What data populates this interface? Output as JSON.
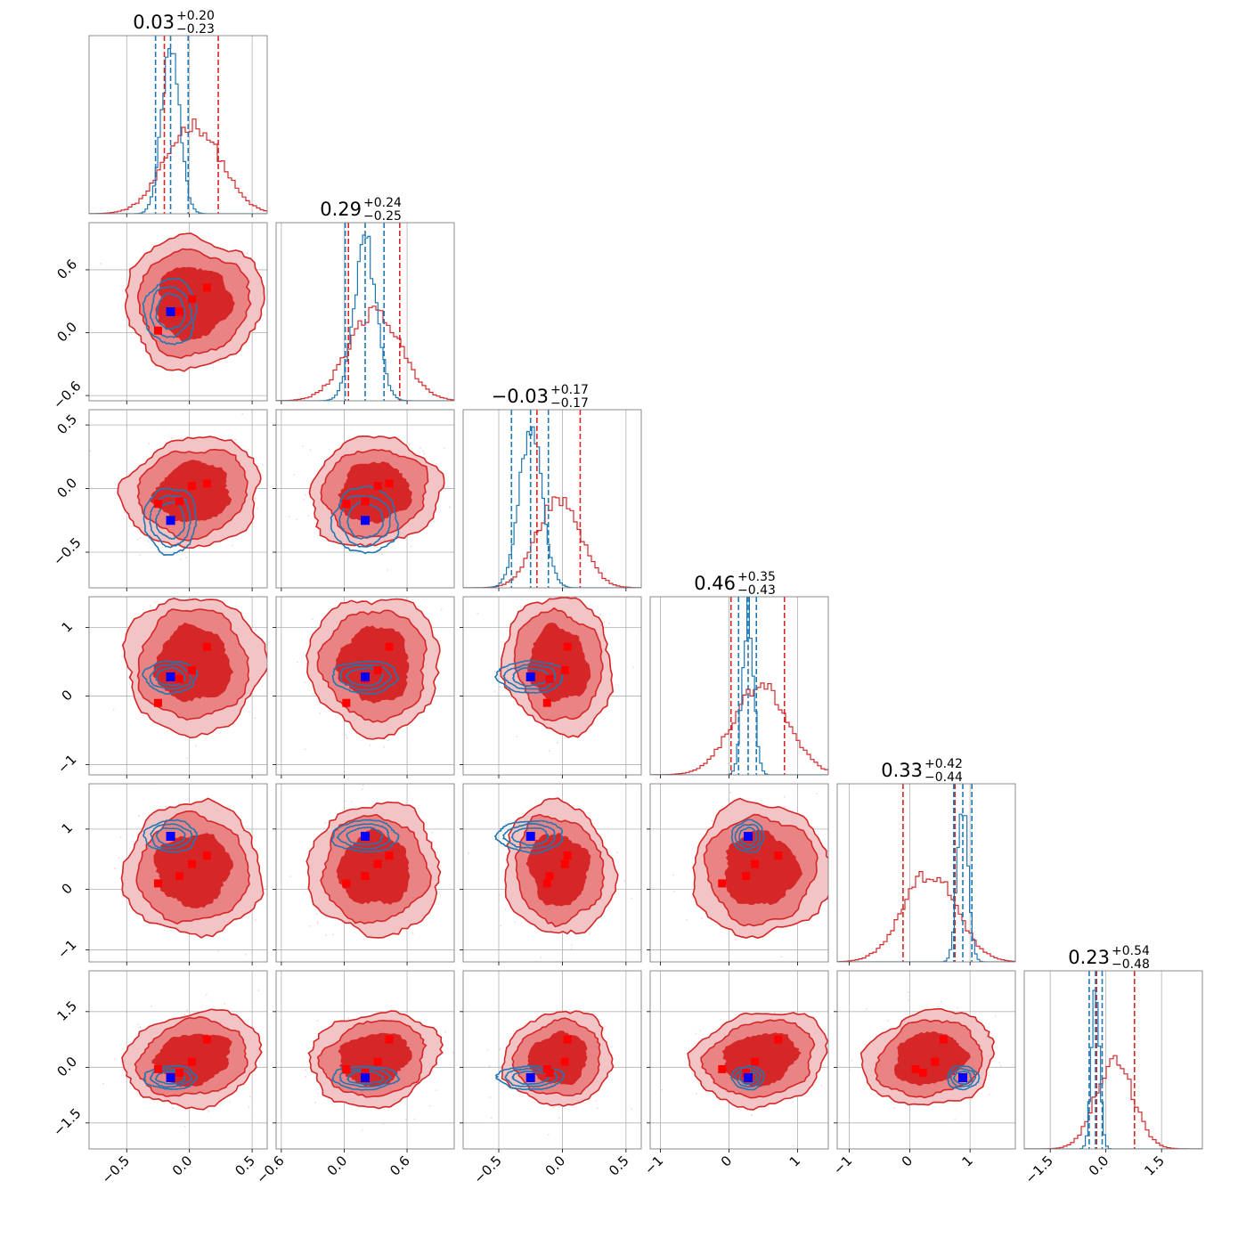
{
  "chart_data": {
    "type": "corner",
    "n_params": 6,
    "colors": {
      "red": "#d62728",
      "red_fill_outer": "#f2c4c5",
      "red_fill_mid": "#e98384",
      "red_fill_inner": "#d62728",
      "blue": "#1f77b4",
      "marker_red": "#ff0000",
      "marker_blue": "#0000ff"
    },
    "params": [
      {
        "index": 0,
        "range": [
          -0.8,
          0.62
        ],
        "ticks": [
          -0.5,
          0.0,
          0.5
        ],
        "tick_labels": [
          "−0.5",
          "0.0",
          "0.5"
        ],
        "title": {
          "value": "0.03",
          "plus": "+0.20",
          "minus": "−0.23"
        },
        "red": {
          "mean": 0.03,
          "sd": 0.22,
          "quantiles": [
            -0.2,
            0.23
          ]
        },
        "blue": {
          "mean": -0.15,
          "sd": 0.08,
          "quantiles": [
            -0.27,
            -0.01
          ]
        },
        "red_points": [
          -0.25,
          -0.08,
          0.02,
          0.14
        ],
        "blue_point": -0.15
      },
      {
        "index": 1,
        "range": [
          -0.65,
          1.05
        ],
        "ticks": [
          -0.6,
          0.0,
          0.6
        ],
        "tick_labels": [
          "−0.6",
          "0.0",
          "0.6"
        ],
        "title": {
          "value": "0.29",
          "plus": "+0.24",
          "minus": "−0.25"
        },
        "red": {
          "mean": 0.29,
          "sd": 0.25,
          "quantiles": [
            0.04,
            0.53
          ]
        },
        "blue": {
          "mean": 0.2,
          "sd": 0.12,
          "quantiles": [
            0.01,
            0.38
          ]
        },
        "red_points": [
          0.02,
          0.2,
          0.32,
          0.43
        ],
        "blue_point": 0.2
      },
      {
        "index": 2,
        "range": [
          -0.78,
          0.62
        ],
        "ticks": [
          -0.5,
          0.0,
          0.5
        ],
        "tick_labels": [
          "−0.5",
          "0.0",
          "0.5"
        ],
        "title": {
          "value": "−0.03",
          "plus": "+0.17",
          "minus": "−0.17"
        },
        "red": {
          "mean": -0.03,
          "sd": 0.17,
          "quantiles": [
            -0.2,
            0.14
          ]
        },
        "blue": {
          "mean": -0.25,
          "sd": 0.1,
          "quantiles": [
            -0.4,
            -0.11
          ]
        },
        "red_points": [
          -0.12,
          -0.1,
          0.02,
          0.04
        ],
        "blue_point": -0.25
      },
      {
        "index": 3,
        "range": [
          -1.15,
          1.45
        ],
        "ticks": [
          -1,
          0,
          1
        ],
        "tick_labels": [
          "−1",
          "0",
          "1"
        ],
        "title": {
          "value": "0.46",
          "plus": "+0.35",
          "minus": "−0.43"
        },
        "red": {
          "mean": 0.46,
          "sd": 0.4,
          "quantiles": [
            0.03,
            0.81
          ]
        },
        "blue": {
          "mean": 0.28,
          "sd": 0.09,
          "quantiles": [
            0.14,
            0.4
          ]
        },
        "red_points": [
          -0.1,
          0.25,
          0.38,
          0.72
        ],
        "blue_point": 0.28
      },
      {
        "index": 4,
        "range": [
          -1.2,
          1.75
        ],
        "ticks": [
          -1,
          0,
          1
        ],
        "tick_labels": [
          "−1",
          "0",
          "1"
        ],
        "title": {
          "value": "0.33",
          "plus": "+0.42",
          "minus": "−0.44"
        },
        "red": {
          "mean": 0.33,
          "sd": 0.44,
          "quantiles": [
            -0.11,
            0.75
          ]
        },
        "blue": {
          "mean": 0.88,
          "sd": 0.1,
          "quantiles": [
            0.73,
            1.03
          ]
        },
        "red_points": [
          0.1,
          0.22,
          0.42,
          0.56
        ],
        "blue_point": 0.88
      },
      {
        "index": 5,
        "range": [
          -2.2,
          2.6
        ],
        "ticks": [
          -1.5,
          0.0,
          1.5
        ],
        "tick_labels": [
          "−1.5",
          "0.0",
          "1.5"
        ],
        "title": {
          "value": "0.23",
          "plus": "+0.54",
          "minus": "−0.48"
        },
        "red": {
          "mean": 0.23,
          "sd": 0.5,
          "quantiles": [
            -0.25,
            0.77
          ]
        },
        "blue": {
          "mean": -0.28,
          "sd": 0.12,
          "quantiles": [
            -0.45,
            -0.1
          ]
        },
        "red_points": [
          -0.05,
          -0.15,
          0.15,
          0.75,
          0.58
        ],
        "blue_point": -0.28
      }
    ]
  }
}
